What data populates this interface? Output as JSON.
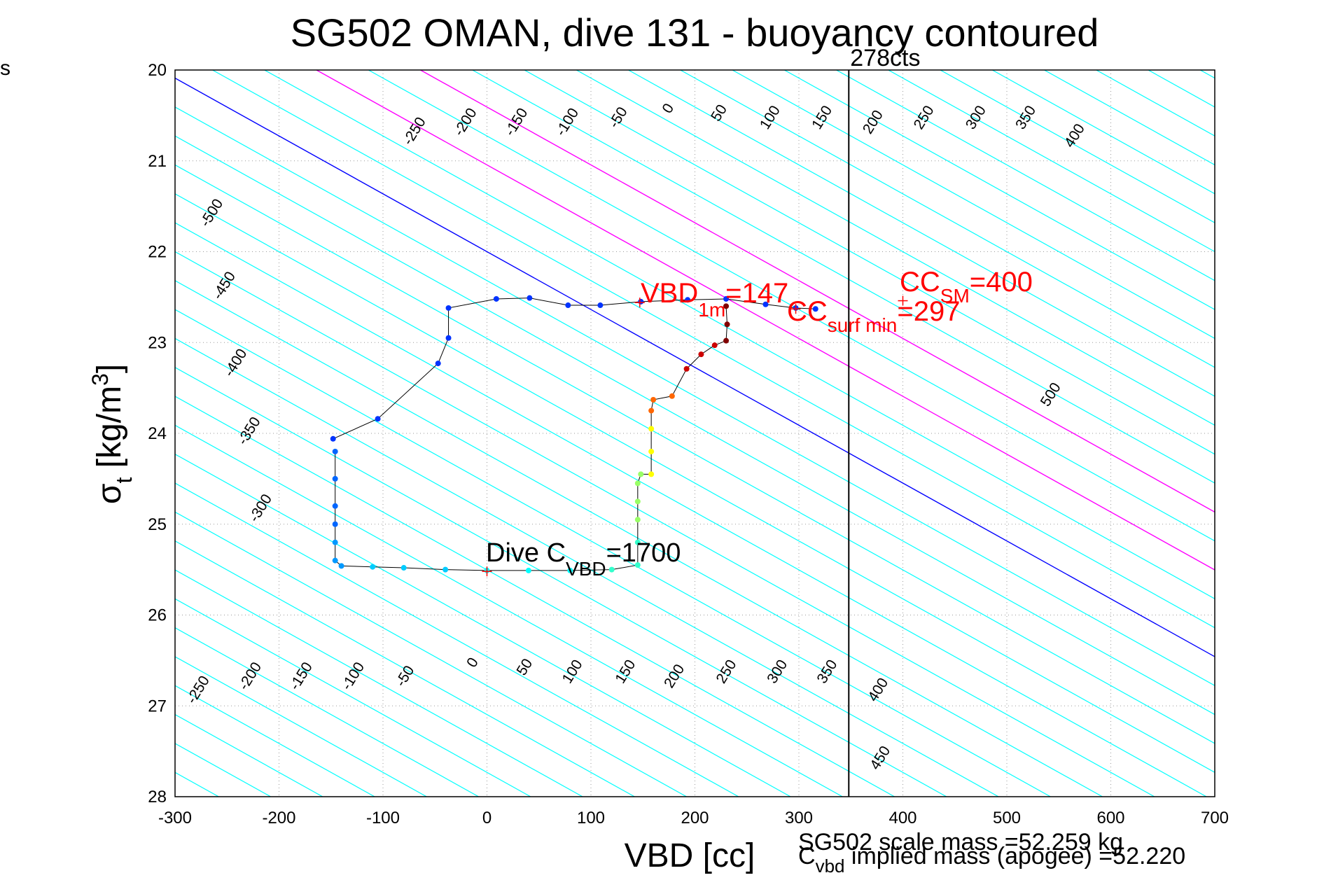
{
  "chart_data": {
    "type": "scatter",
    "title": "SG502 OMAN, dive 131 - buoyancy contoured",
    "corner_mark": "s",
    "xlabel": "VBD [cc]",
    "ylabel_main": "σ",
    "ylabel_sub": "t",
    "ylabel_rest": " [kg/m",
    "ylabel_sup": "3",
    "ylabel_end": "]",
    "xlim": [
      -300,
      700
    ],
    "ylim": [
      20,
      28
    ],
    "y_reversed": true,
    "grid": true,
    "x_ticks": [
      -300,
      -200,
      -100,
      0,
      100,
      200,
      300,
      400,
      500,
      600,
      700
    ],
    "x_tick_labels": [
      "-300",
      "-200",
      "-100",
      "0",
      "100",
      "200",
      "300",
      "400",
      "500",
      "600",
      "700"
    ],
    "y_ticks": [
      20,
      21,
      22,
      23,
      24,
      25,
      26,
      27,
      28
    ],
    "y_tick_labels": [
      "20",
      "21",
      "22",
      "23",
      "24",
      "25",
      "26",
      "27",
      "28"
    ],
    "contours": {
      "slope_cc_per_sigma": 157,
      "x_at_sigma_22": [
        -300,
        -250,
        -200,
        -150,
        -100,
        -50,
        0,
        50,
        100,
        150,
        200,
        250,
        300,
        350,
        400,
        450,
        500,
        550,
        600,
        650,
        700
      ],
      "zero_color": "#0000ff",
      "cyan_color": "#00ffff",
      "magenta_color": "#ff00ff",
      "magenta_offsets": [
        150,
        250
      ],
      "top_labels": [
        {
          "text": "-500",
          "x": -261,
          "y": 21.6
        },
        {
          "text": "-450",
          "x": -249,
          "y": 22.4
        },
        {
          "text": "-400",
          "x": -238,
          "y": 23.25
        },
        {
          "text": "-350",
          "x": -225,
          "y": 24.0
        },
        {
          "text": "-300",
          "x": -214,
          "y": 24.85
        },
        {
          "text": "-250",
          "x": -66,
          "y": 20.7
        },
        {
          "text": "-200",
          "x": -17,
          "y": 20.6
        },
        {
          "text": "-150",
          "x": 32,
          "y": 20.6
        },
        {
          "text": "-100",
          "x": 81,
          "y": 20.6
        },
        {
          "text": "-50",
          "x": 130,
          "y": 20.55
        },
        {
          "text": "0",
          "x": 178,
          "y": 20.45
        },
        {
          "text": "50",
          "x": 227,
          "y": 20.5
        },
        {
          "text": "100",
          "x": 276,
          "y": 20.55
        },
        {
          "text": "150",
          "x": 326,
          "y": 20.55
        },
        {
          "text": "200",
          "x": 375,
          "y": 20.6
        },
        {
          "text": "250",
          "x": 424,
          "y": 20.55
        },
        {
          "text": "300",
          "x": 474,
          "y": 20.55
        },
        {
          "text": "350",
          "x": 522,
          "y": 20.55
        },
        {
          "text": "400",
          "x": 569,
          "y": 20.75
        },
        {
          "text": "500",
          "x": 546,
          "y": 23.6
        }
      ],
      "bottom_labels": [
        {
          "text": "-250",
          "x": -274,
          "y": 26.85
        },
        {
          "text": "-200",
          "x": -224,
          "y": 26.7
        },
        {
          "text": "-150",
          "x": -175,
          "y": 26.7
        },
        {
          "text": "-100",
          "x": -125,
          "y": 26.7
        },
        {
          "text": "-50",
          "x": -75,
          "y": 26.7
        },
        {
          "text": "0",
          "x": -10,
          "y": 26.55
        },
        {
          "text": "50",
          "x": 40,
          "y": 26.6
        },
        {
          "text": "100",
          "x": 86,
          "y": 26.65
        },
        {
          "text": "150",
          "x": 137,
          "y": 26.65
        },
        {
          "text": "200",
          "x": 184,
          "y": 26.7
        },
        {
          "text": "250",
          "x": 234,
          "y": 26.65
        },
        {
          "text": "300",
          "x": 283,
          "y": 26.65
        },
        {
          "text": "350",
          "x": 331,
          "y": 26.65
        },
        {
          "text": "400",
          "x": 380,
          "y": 26.85
        },
        {
          "text": "450",
          "x": 382,
          "y": 27.6
        }
      ]
    },
    "vertical_line": {
      "x": 348,
      "label": "278cts",
      "color": "#000000"
    },
    "trace": [
      {
        "x": -148,
        "y": 24.06
      },
      {
        "x": -105,
        "y": 23.84
      },
      {
        "x": -47,
        "y": 23.23
      },
      {
        "x": -37,
        "y": 22.95
      },
      {
        "x": -37,
        "y": 22.62
      },
      {
        "x": 9,
        "y": 22.52
      },
      {
        "x": 41,
        "y": 22.51
      },
      {
        "x": 78,
        "y": 22.59
      },
      {
        "x": 109,
        "y": 22.59
      },
      {
        "x": 148,
        "y": 22.55
      },
      {
        "x": 193,
        "y": 22.53
      },
      {
        "x": 230,
        "y": 22.52
      },
      {
        "x": 268,
        "y": 22.58
      },
      {
        "x": 297,
        "y": 22.62
      },
      {
        "x": 316,
        "y": 22.63
      }
    ],
    "trace_color": "#0033ff",
    "dive_segment": [
      {
        "x": -146,
        "y": 24.2
      },
      {
        "x": -146,
        "y": 24.5
      },
      {
        "x": -146,
        "y": 24.8
      },
      {
        "x": -146,
        "y": 25.0
      },
      {
        "x": -146,
        "y": 25.2
      },
      {
        "x": -146,
        "y": 25.4
      },
      {
        "x": -140,
        "y": 25.46
      },
      {
        "x": -110,
        "y": 25.47
      },
      {
        "x": -80,
        "y": 25.48
      },
      {
        "x": -40,
        "y": 25.5
      },
      {
        "x": 0,
        "y": 25.51
      },
      {
        "x": 40,
        "y": 25.51
      },
      {
        "x": 80,
        "y": 25.51
      },
      {
        "x": 120,
        "y": 25.5
      },
      {
        "x": 145,
        "y": 25.45
      },
      {
        "x": 145,
        "y": 25.2
      },
      {
        "x": 145,
        "y": 24.95
      },
      {
        "x": 145,
        "y": 24.75
      },
      {
        "x": 145,
        "y": 24.55
      },
      {
        "x": 148,
        "y": 24.45
      },
      {
        "x": 158,
        "y": 24.45
      },
      {
        "x": 158,
        "y": 24.2
      },
      {
        "x": 158,
        "y": 23.95
      },
      {
        "x": 158,
        "y": 23.75
      },
      {
        "x": 160,
        "y": 23.63
      },
      {
        "x": 178,
        "y": 23.59
      },
      {
        "x": 192,
        "y": 23.29
      },
      {
        "x": 206,
        "y": 23.13
      },
      {
        "x": 219,
        "y": 23.03
      },
      {
        "x": 230,
        "y": 22.98
      },
      {
        "x": 231,
        "y": 22.8
      },
      {
        "x": 230,
        "y": 22.6
      }
    ],
    "dive_segment_colors": [
      "#0066ff",
      "#0099ff",
      "#00ccff",
      "#00ffff",
      "#33ffcc",
      "#99ff66",
      "#ffff00",
      "#ff6600",
      "#cc0000",
      "#800000"
    ],
    "markers": [
      {
        "x": 147,
        "y": 22.56,
        "color": "#ff0000"
      },
      {
        "x": 297,
        "y": 22.63,
        "color": "#ff0000"
      },
      {
        "x": 400,
        "y": 22.54,
        "color": "#ff0000"
      },
      {
        "x": 0,
        "y": 25.52,
        "color": "#ff0000"
      }
    ],
    "annotations": {
      "vbd_1m": {
        "main": "VBD",
        "sub": "1m",
        "rest": "=147",
        "color": "#ff0000"
      },
      "cc_surf_min": {
        "main": "CC",
        "sub": "surf min",
        "rest": "=297",
        "color": "#ff0000"
      },
      "cc_sm": {
        "main": "CC",
        "sub": "SM",
        "rest": "=400",
        "color": "#ff0000"
      },
      "dive_c_vbd": {
        "main": "Dive C",
        "sub": "VBD",
        "rest": "=1700",
        "color": "#000000"
      }
    },
    "footer": {
      "scale_mass": "SG502 scale mass =52.259 kg",
      "implied_main": "C",
      "implied_sub": "vbd",
      "implied_rest": " implied mass (apogee) =52.220"
    }
  }
}
